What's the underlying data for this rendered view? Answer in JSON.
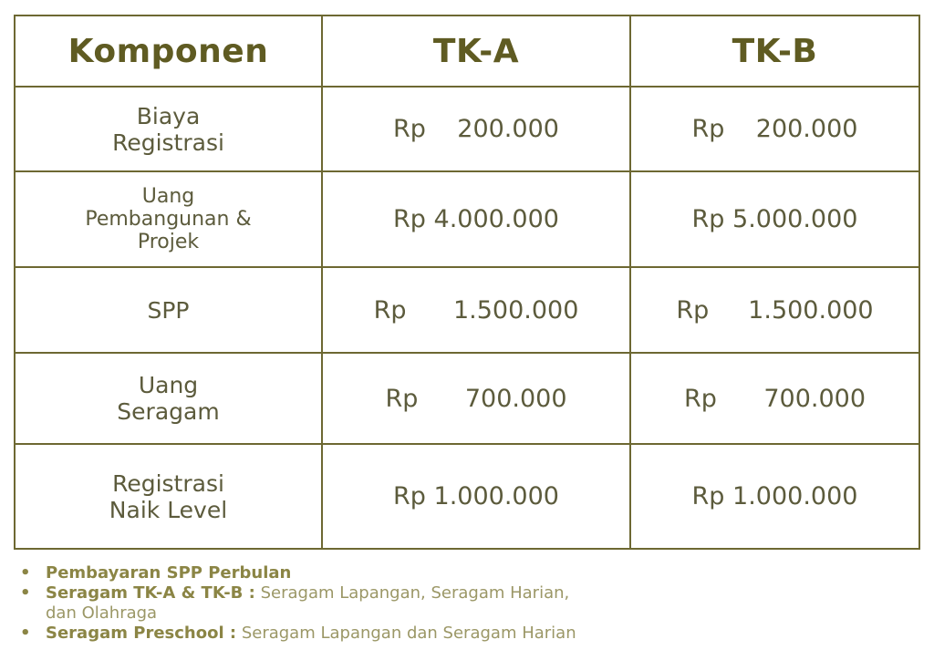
{
  "table": {
    "headers": [
      "Komponen",
      "TK-A",
      "TK-B"
    ],
    "rows": [
      {
        "komponen": "Biaya\nRegistrasi",
        "tka": "Rp    200.000",
        "tkb": "Rp    200.000"
      },
      {
        "komponen": "Uang\nPembangunan &\nProjek",
        "tka": "Rp 4.000.000",
        "tkb": "Rp 5.000.000"
      },
      {
        "komponen": "SPP",
        "tka": "Rp      1.500.000",
        "tkb": "Rp     1.500.000"
      },
      {
        "komponen": "Uang\nSeragam",
        "tka": "Rp      700.000",
        "tkb": "Rp      700.000"
      },
      {
        "komponen": "Registrasi\nNaik Level",
        "tka": "Rp 1.000.000",
        "tkb": "Rp 1.000.000"
      }
    ]
  },
  "notes": [
    {
      "bold": "Pembayaran SPP Perbulan",
      "text": ""
    },
    {
      "bold": "Seragam TK-A & TK-B :",
      "text": " Seragam Lapangan, Seragam Harian,\ndan Olahraga"
    },
    {
      "bold": "Seragam Preschool :",
      "text": " Seragam Lapangan dan Seragam Harian"
    }
  ],
  "colors": {
    "border": "#6d6832",
    "header_text": "#5f5b22",
    "body_text": "#5c5b3c",
    "note_bold": "#8b8545",
    "note_text": "#9b9766"
  }
}
